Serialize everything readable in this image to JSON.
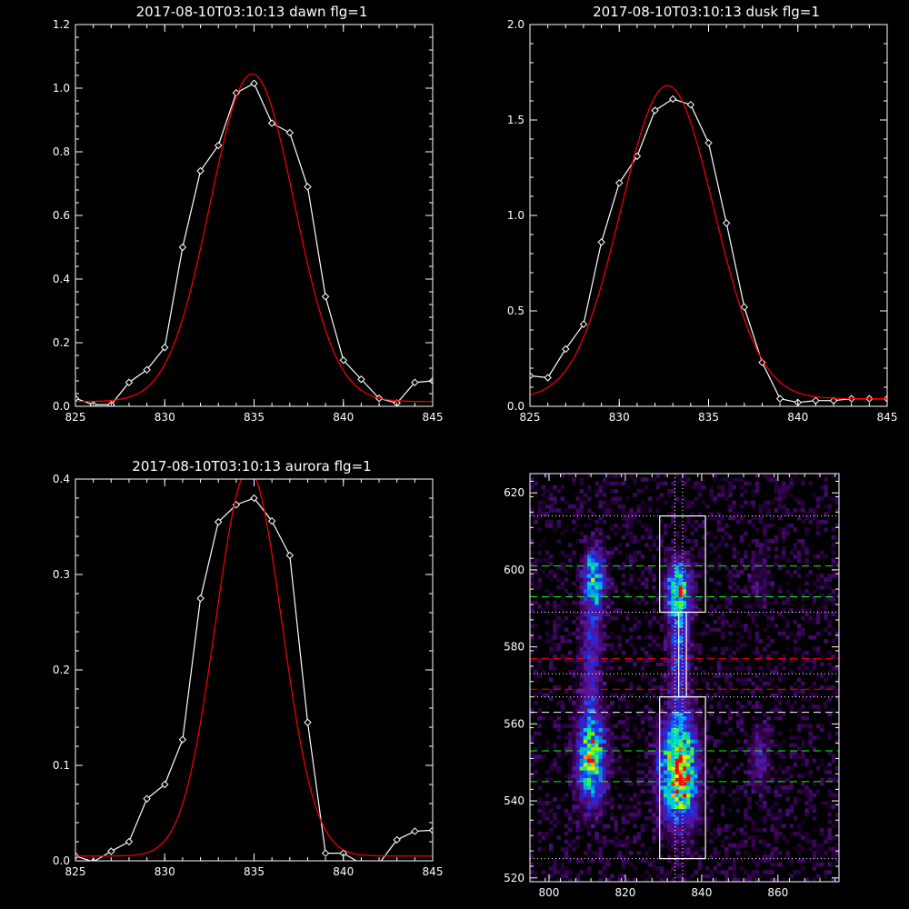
{
  "chart_data": [
    {
      "panel": "dawn",
      "type": "line",
      "title": "2017-08-10T03:10:13 dawn flg=1",
      "xlim": [
        825,
        845
      ],
      "ylim": [
        0,
        1.2
      ],
      "xticks": [
        "825",
        "830",
        "835",
        "840",
        "845"
      ],
      "yticks": [
        "0.0",
        "0.2",
        "0.4",
        "0.6",
        "0.8",
        "1.0",
        "1.2"
      ],
      "series": [
        {
          "color": "#ffffff",
          "markers": "diamond",
          "x": [
            825,
            826,
            827,
            828,
            829,
            830,
            831,
            832,
            833,
            834,
            835,
            836,
            837,
            838,
            839,
            840,
            841,
            842,
            843,
            844,
            845
          ],
          "y": [
            0.025,
            0.005,
            0.005,
            0.075,
            0.115,
            0.185,
            0.5,
            0.74,
            0.82,
            0.985,
            1.015,
            0.89,
            0.86,
            0.69,
            0.345,
            0.145,
            0.085,
            0.025,
            0.01,
            0.075,
            0.08
          ]
        },
        {
          "color": "#ff0000",
          "fit": "gaussian",
          "amplitude": 1.03,
          "center": 834.9,
          "sigma": 2.35,
          "offset": 0.015
        }
      ]
    },
    {
      "panel": "dusk",
      "type": "line",
      "title": "2017-08-10T03:10:13 dusk flg=1",
      "xlim": [
        825,
        845
      ],
      "ylim": [
        0,
        2.0
      ],
      "xticks": [
        "825",
        "830",
        "835",
        "840",
        "845"
      ],
      "yticks": [
        "0.0",
        "0.5",
        "1.0",
        "1.5",
        "2.0"
      ],
      "series": [
        {
          "color": "#ffffff",
          "markers": "diamond",
          "x": [
            825,
            826,
            827,
            828,
            829,
            830,
            831,
            832,
            833,
            834,
            835,
            836,
            837,
            838,
            839,
            840,
            841,
            842,
            843,
            844,
            845
          ],
          "y": [
            0.16,
            0.15,
            0.3,
            0.43,
            0.86,
            1.17,
            1.31,
            1.55,
            1.61,
            1.58,
            1.38,
            0.96,
            0.52,
            0.23,
            0.04,
            0.02,
            0.03,
            0.03,
            0.04,
            0.04,
            0.04
          ]
        },
        {
          "color": "#ff0000",
          "fit": "gaussian",
          "amplitude": 1.64,
          "center": 832.7,
          "sigma": 2.6,
          "offset": 0.04
        }
      ]
    },
    {
      "panel": "aurora",
      "type": "line",
      "title": "2017-08-10T03:10:13 aurora flg=1",
      "xlim": [
        825,
        845
      ],
      "ylim": [
        0,
        0.4
      ],
      "xticks": [
        "825",
        "830",
        "835",
        "840",
        "845"
      ],
      "yticks": [
        "0.0",
        "0.1",
        "0.2",
        "0.3",
        "0.4"
      ],
      "series": [
        {
          "color": "#ffffff",
          "markers": "diamond",
          "x": [
            825,
            826,
            827,
            828,
            829,
            830,
            831,
            832,
            833,
            834,
            835,
            836,
            837,
            838,
            839,
            840,
            841,
            842,
            843,
            844,
            845
          ],
          "y": [
            0.005,
            -0.001,
            0.01,
            0.02,
            0.065,
            0.08,
            0.127,
            0.275,
            0.355,
            0.373,
            0.38,
            0.356,
            0.32,
            0.145,
            0.008,
            0.008,
            -0.003,
            -0.003,
            0.022,
            0.031,
            0.032
          ]
        },
        {
          "color": "#ff0000",
          "fit": "gaussian",
          "amplitude": 0.405,
          "center": 834.7,
          "sigma": 1.85,
          "offset": 0.005
        }
      ]
    },
    {
      "panel": "image",
      "type": "heatmap",
      "xlim": [
        795,
        876
      ],
      "ylim": [
        519,
        625
      ],
      "xticks": [
        "800",
        "820",
        "840",
        "860"
      ],
      "yticks": [
        "520",
        "540",
        "560",
        "580",
        "600",
        "620"
      ],
      "colormap": "rainbow",
      "blobs": [
        {
          "x": 811,
          "y": 551,
          "sx": 2.5,
          "sy": 8,
          "amp": 0.75
        },
        {
          "x": 812,
          "y": 598,
          "sx": 2.0,
          "sy": 5,
          "amp": 0.55
        },
        {
          "x": 811,
          "y": 580,
          "sx": 2.0,
          "sy": 12,
          "amp": 0.28
        },
        {
          "x": 834,
          "y": 548,
          "sx": 3.2,
          "sy": 9,
          "amp": 1.0
        },
        {
          "x": 834,
          "y": 595,
          "sx": 2.2,
          "sy": 5,
          "amp": 0.7
        },
        {
          "x": 834,
          "y": 578,
          "sx": 1.8,
          "sy": 10,
          "amp": 0.35
        },
        {
          "x": 855,
          "y": 551,
          "sx": 2.0,
          "sy": 6,
          "amp": 0.22
        },
        {
          "x": 855,
          "y": 598,
          "sx": 2.0,
          "sy": 6,
          "amp": 0.12
        }
      ],
      "boxes": [
        {
          "x0": 829,
          "x1": 841,
          "y0": 589,
          "y1": 614
        },
        {
          "x0": 829,
          "x1": 841,
          "y0": 525,
          "y1": 567
        },
        {
          "x0": 834,
          "x1": 836,
          "y0": 567,
          "y1": 589
        }
      ],
      "vlines_dotted": [
        833,
        835
      ],
      "hlines": [
        {
          "y": 614,
          "color": "#ffffff",
          "style": "dotted"
        },
        {
          "y": 601,
          "color": "#00ff00",
          "style": "dashed"
        },
        {
          "y": 593,
          "color": "#00ff00",
          "style": "dashed"
        },
        {
          "y": 589,
          "color": "#ffffff",
          "style": "dotted"
        },
        {
          "y": 577,
          "color": "#ff0000",
          "style": "dashed"
        },
        {
          "y": 573,
          "color": "#ffffff",
          "style": "dotted"
        },
        {
          "y": 569,
          "color": "#ff0000",
          "style": "dashed"
        },
        {
          "y": 567,
          "color": "#ffffff",
          "style": "dotted"
        },
        {
          "y": 563,
          "color": "#ffffff",
          "style": "dashed"
        },
        {
          "y": 553,
          "color": "#00ff00",
          "style": "dashed"
        },
        {
          "y": 545,
          "color": "#00ff00",
          "style": "dashed"
        },
        {
          "y": 525,
          "color": "#ffffff",
          "style": "dotted"
        }
      ]
    }
  ]
}
